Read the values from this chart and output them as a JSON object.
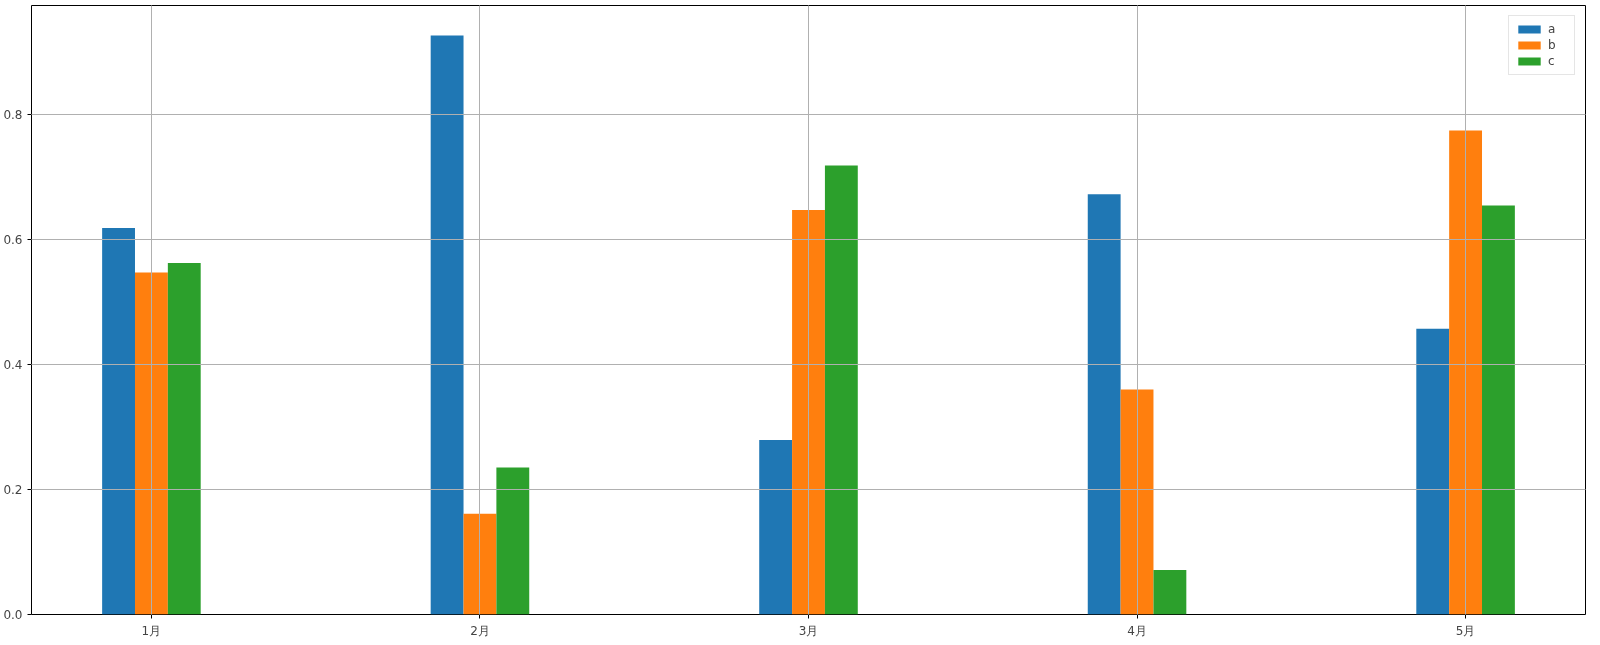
{
  "chart_data": {
    "type": "bar",
    "categories": [
      "1月",
      "2月",
      "3月",
      "4月",
      "5月"
    ],
    "series": [
      {
        "name": "a",
        "color": "#1f77b4",
        "values": [
          0.618,
          0.926,
          0.279,
          0.672,
          0.457
        ]
      },
      {
        "name": "b",
        "color": "#ff7f0e",
        "values": [
          0.547,
          0.161,
          0.647,
          0.36,
          0.774
        ]
      },
      {
        "name": "c",
        "color": "#2ca02c",
        "values": [
          0.562,
          0.235,
          0.718,
          0.071,
          0.654
        ]
      }
    ],
    "ylim": [
      0,
      0.974
    ],
    "yticks": [
      {
        "value": 0,
        "label": "0.0"
      },
      0.2,
      0.4,
      0.6,
      0.8
    ],
    "grid": true,
    "legend": "top right"
  }
}
